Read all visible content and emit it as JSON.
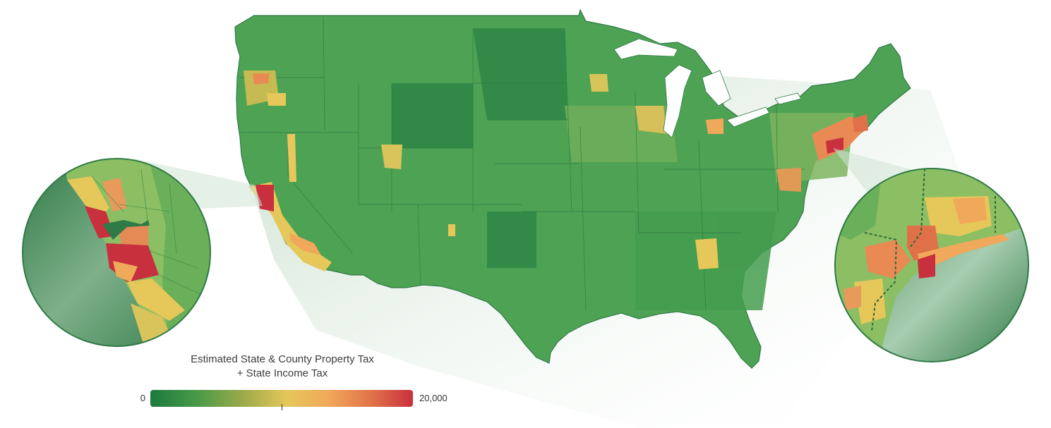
{
  "legend": {
    "title_line1": "Estimated State & County Property Tax",
    "title_line2": "+ State Income Tax",
    "min_label": "0",
    "max_label": "20,000",
    "domain": [
      0,
      20000
    ],
    "marker_value": 10000,
    "colors": [
      "#1b7a3e",
      "#4a9a48",
      "#9aaa4a",
      "#e5c75a",
      "#f0a85a",
      "#e07048",
      "#c8303e"
    ]
  },
  "map": {
    "region": "Contiguous United States",
    "base_color": "#4ea254",
    "insets": [
      {
        "name": "San Francisco Bay Area"
      },
      {
        "name": "New York Metro Area"
      }
    ]
  }
}
